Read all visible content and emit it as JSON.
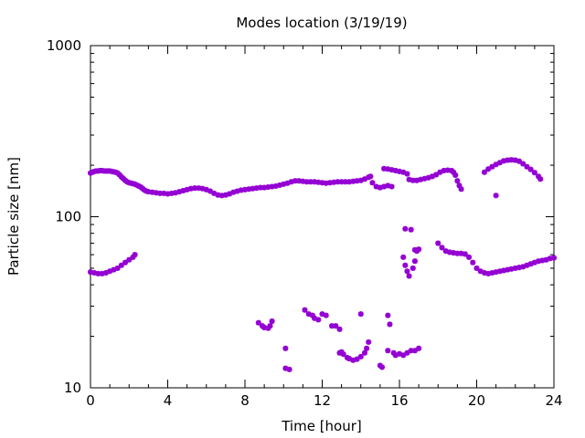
{
  "chart_data": {
    "type": "scatter",
    "title": "Modes location (3/19/19)",
    "xlabel": "Time [hour]",
    "ylabel": "Particle size [nm]",
    "xlim": [
      0,
      24
    ],
    "ylim": [
      10,
      1000
    ],
    "yscale": "log",
    "grid": false,
    "legend": "none",
    "marker_color": "#9400d3",
    "x_ticks": [
      0,
      4,
      8,
      12,
      16,
      20,
      24
    ],
    "x_tick_labels": [
      "0",
      "4",
      "8",
      "12",
      "16",
      "20",
      "24"
    ],
    "y_ticks": [
      10,
      100,
      1000
    ],
    "y_tick_labels": [
      "10",
      "100",
      "1000"
    ],
    "series": [
      {
        "points": [
          [
            0.0,
            180
          ],
          [
            0.1,
            182
          ],
          [
            0.2,
            184
          ],
          [
            0.3,
            185
          ],
          [
            0.4,
            185
          ],
          [
            0.5,
            186
          ],
          [
            0.6,
            186
          ],
          [
            0.7,
            185
          ],
          [
            0.8,
            185
          ],
          [
            0.9,
            185
          ],
          [
            1.0,
            185
          ],
          [
            1.1,
            184
          ],
          [
            1.2,
            183
          ],
          [
            1.3,
            182
          ],
          [
            1.4,
            180
          ],
          [
            1.5,
            176
          ],
          [
            1.6,
            171
          ],
          [
            1.7,
            167
          ],
          [
            1.8,
            163
          ],
          [
            1.9,
            160
          ],
          [
            2.0,
            158
          ],
          [
            2.1,
            157
          ],
          [
            2.2,
            156
          ],
          [
            2.3,
            155
          ],
          [
            2.4,
            153
          ],
          [
            2.5,
            151
          ],
          [
            2.6,
            149
          ],
          [
            2.7,
            146
          ],
          [
            2.8,
            143
          ],
          [
            2.9,
            141
          ],
          [
            3.0,
            140
          ],
          [
            3.2,
            139
          ],
          [
            3.4,
            138
          ],
          [
            3.6,
            137
          ],
          [
            3.8,
            137
          ],
          [
            4.0,
            136
          ],
          [
            4.2,
            137
          ],
          [
            4.4,
            138
          ],
          [
            4.6,
            140
          ],
          [
            4.8,
            142
          ],
          [
            5.0,
            144
          ],
          [
            5.2,
            146
          ],
          [
            5.4,
            147
          ],
          [
            5.6,
            147
          ],
          [
            5.8,
            146
          ],
          [
            6.0,
            144
          ],
          [
            6.2,
            141
          ],
          [
            6.4,
            137
          ],
          [
            6.6,
            134
          ],
          [
            6.8,
            133
          ],
          [
            7.0,
            134
          ],
          [
            7.2,
            136
          ],
          [
            7.4,
            139
          ],
          [
            7.6,
            141
          ],
          [
            7.8,
            143
          ],
          [
            8.0,
            144
          ],
          [
            8.2,
            145
          ],
          [
            8.4,
            146
          ],
          [
            8.6,
            147
          ],
          [
            8.8,
            148
          ],
          [
            9.0,
            148
          ],
          [
            9.2,
            149
          ],
          [
            9.4,
            150
          ],
          [
            9.6,
            151
          ],
          [
            9.8,
            153
          ],
          [
            10.0,
            155
          ],
          [
            10.2,
            157
          ],
          [
            10.4,
            160
          ],
          [
            10.6,
            162
          ],
          [
            10.8,
            162
          ],
          [
            11.0,
            161
          ],
          [
            11.2,
            160
          ],
          [
            11.4,
            160
          ],
          [
            11.6,
            160
          ],
          [
            11.8,
            159
          ],
          [
            12.0,
            158
          ],
          [
            12.2,
            157
          ],
          [
            12.4,
            158
          ],
          [
            12.6,
            159
          ],
          [
            12.8,
            160
          ],
          [
            13.0,
            160
          ],
          [
            13.2,
            160
          ],
          [
            13.4,
            160
          ],
          [
            13.6,
            161
          ],
          [
            13.8,
            162
          ],
          [
            14.0,
            163
          ],
          [
            14.2,
            166
          ],
          [
            14.4,
            170
          ],
          [
            14.5,
            172
          ],
          [
            14.6,
            158
          ],
          [
            14.8,
            150
          ],
          [
            15.0,
            148
          ],
          [
            15.2,
            150
          ],
          [
            15.4,
            152
          ],
          [
            15.6,
            150
          ],
          [
            15.2,
            191
          ],
          [
            15.4,
            190
          ],
          [
            15.6,
            188
          ],
          [
            15.8,
            186
          ],
          [
            16.0,
            184
          ],
          [
            16.2,
            182
          ],
          [
            16.4,
            178
          ],
          [
            16.5,
            165
          ],
          [
            16.7,
            163
          ],
          [
            16.9,
            163
          ],
          [
            17.1,
            165
          ],
          [
            17.3,
            167
          ],
          [
            17.5,
            169
          ],
          [
            17.7,
            172
          ],
          [
            17.9,
            176
          ],
          [
            18.1,
            182
          ],
          [
            18.3,
            186
          ],
          [
            18.5,
            187
          ],
          [
            18.7,
            186
          ],
          [
            18.8,
            182
          ],
          [
            18.9,
            175
          ],
          [
            19.0,
            162
          ],
          [
            19.1,
            152
          ],
          [
            19.2,
            145
          ],
          [
            20.4,
            182
          ],
          [
            20.6,
            190
          ],
          [
            20.8,
            196
          ],
          [
            21.0,
            202
          ],
          [
            21.0,
            133
          ],
          [
            21.2,
            207
          ],
          [
            21.4,
            212
          ],
          [
            21.6,
            214
          ],
          [
            21.8,
            215
          ],
          [
            22.0,
            214
          ],
          [
            22.2,
            211
          ],
          [
            22.4,
            204
          ],
          [
            22.6,
            196
          ],
          [
            22.8,
            189
          ],
          [
            23.0,
            181
          ],
          [
            23.2,
            172
          ],
          [
            23.3,
            166
          ]
        ]
      },
      {
        "points": [
          [
            0.0,
            47.5
          ],
          [
            0.2,
            47
          ],
          [
            0.4,
            46.5
          ],
          [
            0.6,
            46.5
          ],
          [
            0.8,
            47
          ],
          [
            1.0,
            48
          ],
          [
            1.2,
            49
          ],
          [
            1.4,
            50
          ],
          [
            1.6,
            52
          ],
          [
            1.8,
            54
          ],
          [
            2.0,
            56
          ],
          [
            2.2,
            58
          ],
          [
            2.3,
            60
          ],
          [
            18.0,
            70
          ],
          [
            18.2,
            66
          ],
          [
            18.4,
            63
          ],
          [
            18.6,
            62
          ],
          [
            18.8,
            61.5
          ],
          [
            19.0,
            61
          ],
          [
            19.2,
            61
          ],
          [
            19.4,
            60.5
          ],
          [
            19.6,
            58
          ],
          [
            19.8,
            54
          ],
          [
            20.0,
            50
          ],
          [
            20.2,
            48
          ],
          [
            20.4,
            47
          ],
          [
            20.6,
            46.5
          ],
          [
            20.8,
            47
          ],
          [
            21.0,
            47.5
          ],
          [
            21.2,
            48
          ],
          [
            21.4,
            48.5
          ],
          [
            21.6,
            49
          ],
          [
            21.8,
            49.5
          ],
          [
            22.0,
            50
          ],
          [
            22.2,
            50.5
          ],
          [
            22.4,
            51
          ],
          [
            22.6,
            52
          ],
          [
            22.8,
            53
          ],
          [
            23.0,
            54
          ],
          [
            23.2,
            55
          ],
          [
            23.4,
            55.5
          ],
          [
            23.6,
            56
          ],
          [
            23.8,
            57
          ],
          [
            24.0,
            57.5
          ]
        ]
      },
      {
        "points": [
          [
            8.7,
            24
          ],
          [
            8.9,
            23
          ],
          [
            9.0,
            22.5
          ],
          [
            9.2,
            22.3
          ],
          [
            9.3,
            23
          ],
          [
            9.4,
            24.5
          ],
          [
            10.1,
            17
          ],
          [
            10.1,
            13
          ],
          [
            10.3,
            12.8
          ],
          [
            11.1,
            28.5
          ],
          [
            11.3,
            27
          ],
          [
            11.5,
            26.5
          ],
          [
            11.6,
            25.5
          ],
          [
            11.8,
            25
          ],
          [
            12.0,
            27
          ],
          [
            12.2,
            26.5
          ],
          [
            12.5,
            23
          ],
          [
            12.7,
            23
          ],
          [
            12.9,
            22
          ],
          [
            12.9,
            16
          ],
          [
            13.0,
            16.2
          ],
          [
            13.1,
            15.7
          ],
          [
            13.3,
            15
          ],
          [
            13.4,
            14.8
          ],
          [
            13.6,
            14.5
          ],
          [
            13.8,
            14.7
          ],
          [
            14.0,
            15.2
          ],
          [
            14.2,
            16
          ],
          [
            14.3,
            17
          ],
          [
            14.4,
            18.5
          ],
          [
            14.0,
            27
          ],
          [
            15.0,
            13.5
          ],
          [
            15.1,
            13.2
          ],
          [
            15.4,
            26.5
          ],
          [
            15.5,
            23.5
          ],
          [
            15.4,
            16.5
          ],
          [
            15.7,
            16
          ],
          [
            15.8,
            15.5
          ],
          [
            16.0,
            15.8
          ],
          [
            16.2,
            15.5
          ],
          [
            16.4,
            16
          ],
          [
            16.6,
            16.5
          ],
          [
            16.8,
            16.5
          ],
          [
            17.0,
            17
          ],
          [
            16.2,
            58
          ],
          [
            16.3,
            52
          ],
          [
            16.4,
            48
          ],
          [
            16.5,
            45
          ],
          [
            16.7,
            50
          ],
          [
            16.8,
            55
          ],
          [
            16.9,
            63
          ],
          [
            17.0,
            64.5
          ],
          [
            16.3,
            85
          ],
          [
            16.6,
            84
          ],
          [
            16.8,
            64
          ]
        ]
      }
    ]
  }
}
